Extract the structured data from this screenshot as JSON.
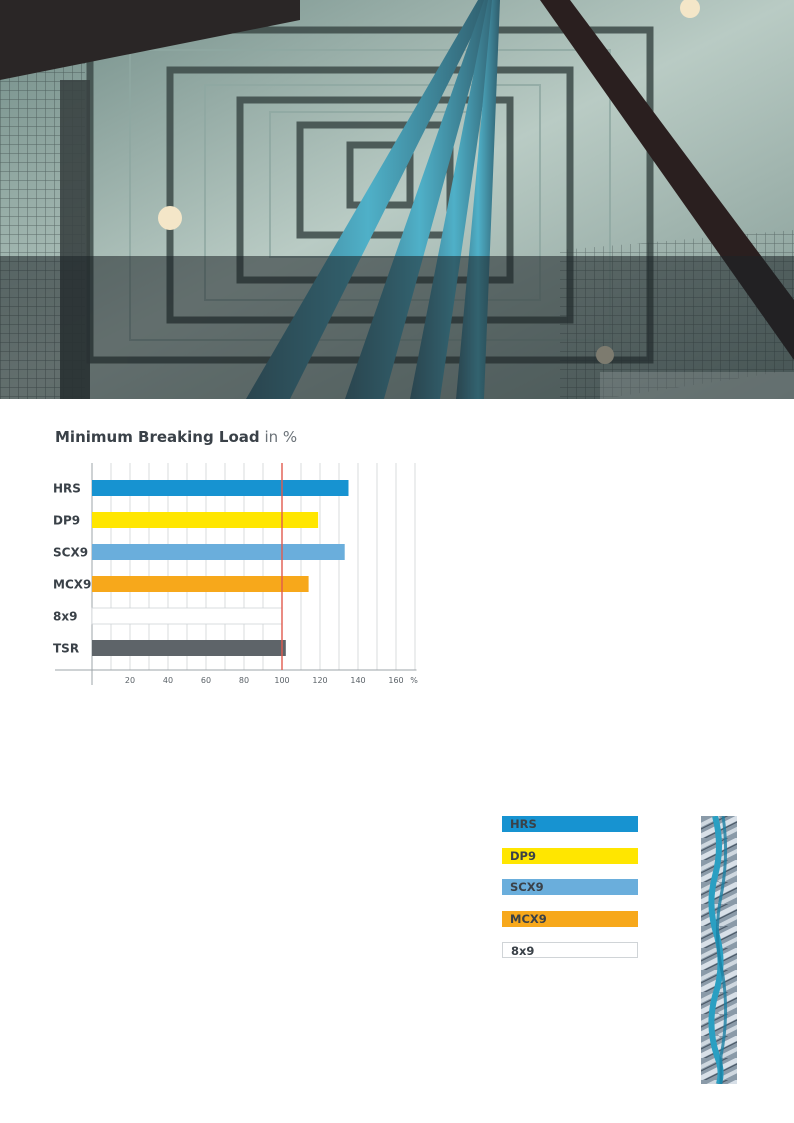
{
  "chart_data": {
    "type": "bar",
    "orientation": "horizontal",
    "title": "Minimum Breaking Load",
    "title_suffix": "in %",
    "categories": [
      "HRS",
      "DP9",
      "SCX9",
      "MCX9",
      "8x9",
      "TSR"
    ],
    "values": [
      135,
      119,
      133,
      114,
      100,
      102
    ],
    "bar_colors": [
      "#1793d1",
      "#ffe600",
      "#6aaedc",
      "#f7a81b",
      "#ffffff",
      "#5e6469"
    ],
    "xlim": [
      0,
      175
    ],
    "xticks": [
      20,
      40,
      60,
      80,
      100,
      120,
      140,
      160
    ],
    "x_unit_label": "%",
    "reference_line": 100,
    "reference_color": "#e05a4e",
    "grid": true
  },
  "legend": {
    "items": [
      {
        "label": "HRS",
        "color": "#1793d1"
      },
      {
        "label": "DP9",
        "color": "#ffe600"
      },
      {
        "label": "SCX9",
        "color": "#6aaedc"
      },
      {
        "label": "MCX9",
        "color": "#f7a81b"
      },
      {
        "label": "8x9",
        "color": "#ffffff"
      }
    ]
  },
  "images": {
    "hero": "elevator-shaft-photo",
    "rope": "steel-rope-sample"
  }
}
